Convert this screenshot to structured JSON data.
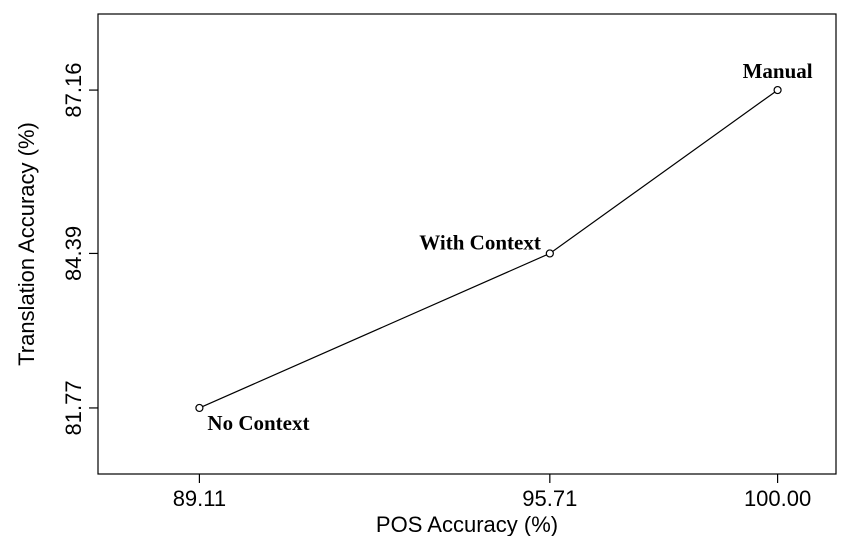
{
  "chart_data": {
    "type": "line",
    "title": "",
    "xlabel": "POS Accuracy (%)",
    "ylabel": "Translation Accuracy (%)",
    "xlim": [
      87.2,
      101.1
    ],
    "ylim": [
      80.65,
      88.45
    ],
    "x_ticks": [
      89.11,
      95.71,
      100.0
    ],
    "x_tick_labels": [
      "89.11",
      "95.71",
      "100.00"
    ],
    "y_ticks": [
      81.77,
      84.39,
      87.16
    ],
    "y_tick_labels": [
      "81.77",
      "84.39",
      "87.16"
    ],
    "grid": false,
    "legend": "none",
    "series": [
      {
        "x": [
          89.11,
          95.71,
          100.0
        ],
        "y": [
          81.77,
          84.39,
          87.16
        ],
        "point_labels": [
          "No Context",
          "With Context",
          "Manual"
        ]
      }
    ]
  }
}
